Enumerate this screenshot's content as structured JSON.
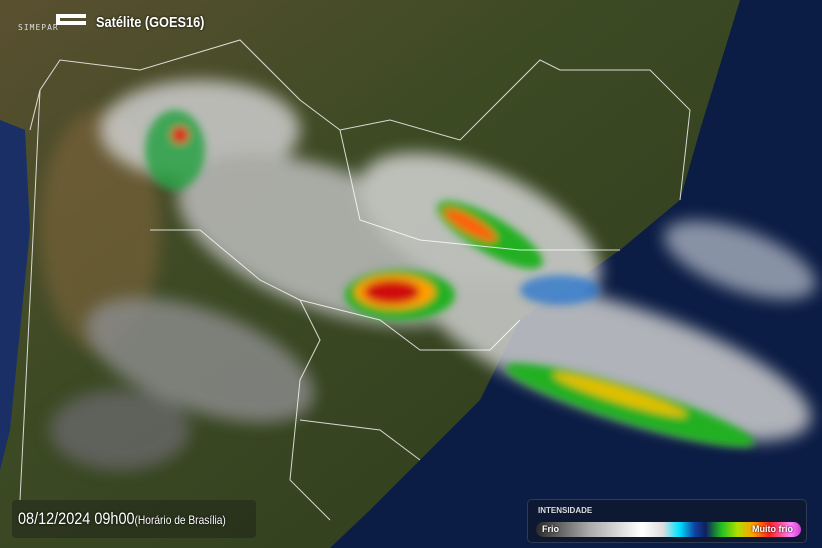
{
  "header": {
    "logo_text": "SIMEPAR",
    "title": "Satélite (GOES16)"
  },
  "timestamp": {
    "date": "08/12/2024 09h00",
    "note": "(Horário de Brasília)"
  },
  "legend": {
    "title": "INTENSIDADE",
    "low_label": "Frio",
    "high_label": "Muito frio"
  },
  "colors": {
    "ocean": "#0b1a3a",
    "land": "#3a4a22",
    "cloud": "#d8d8d8",
    "storm_core": "#ff2020"
  }
}
